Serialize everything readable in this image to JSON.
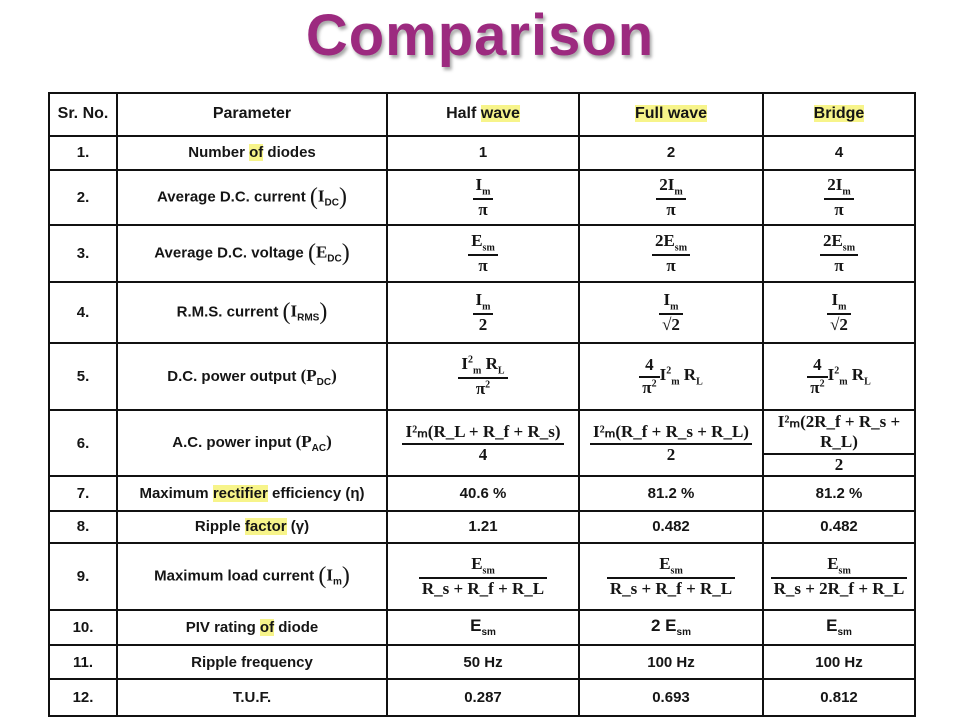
{
  "title": "Comparison",
  "headers": {
    "sr": "Sr. No.",
    "param": "Parameter",
    "half_a": "Half ",
    "half_b": "wave",
    "full": "Full wave",
    "bridge": "Bridge"
  },
  "rows": {
    "r1": {
      "sr": "1.",
      "p_a": "Number ",
      "p_b": "of",
      "p_c": " diodes",
      "half": "1",
      "full": "2",
      "bridge": "4"
    },
    "r2": {
      "sr": "2.",
      "param": "Average D.C. current",
      "sym": "I",
      "sub": "DC",
      "half_num": "I",
      "half_num_sub": "m",
      "half_den": "π",
      "full_num": "2I",
      "full_num_sub": "m",
      "full_den": "π",
      "bridge_num": "2I",
      "bridge_num_sub": "m",
      "bridge_den": "π"
    },
    "r3": {
      "sr": "3.",
      "param": "Average D.C. voltage",
      "sym": "E",
      "sub": "DC",
      "half_num": "E",
      "half_num_sub": "sm",
      "half_den": "π",
      "full_num": "2E",
      "full_num_sub": "sm",
      "full_den": "π",
      "bridge_num": "2E",
      "bridge_num_sub": "sm",
      "bridge_den": "π"
    },
    "r4": {
      "sr": "4.",
      "param": "R.M.S. current",
      "sym": "I",
      "sub": "RMS",
      "half_num": "I",
      "half_num_sub": "m",
      "half_den": "2",
      "full_num": "I",
      "full_num_sub": "m",
      "full_den": "√2",
      "bridge_num": "I",
      "bridge_num_sub": "m",
      "bridge_den": "√2"
    },
    "r5": {
      "sr": "5.",
      "param": "D.C. power output",
      "sym": "P",
      "sub": "DC",
      "half_num": "I",
      "half_num_sup": "2",
      "half_num_sub": "m",
      "half_num_r": " R",
      "half_num_r_sub": "L",
      "half_den": "π",
      "half_den_sup": "2",
      "full_coef_num": "4",
      "full_coef_den": "π",
      "full_coef_den_sup": "2",
      "full_rest": "I",
      "full_rest_sup": "2",
      "full_rest_sub": "m",
      "full_rest_r": " R",
      "full_rest_r_sub": "L",
      "bridge_coef_num": "4",
      "bridge_coef_den": "π",
      "bridge_coef_den_sup": "2",
      "bridge_rest": "I",
      "bridge_rest_sup": "2",
      "bridge_rest_sub": "m",
      "bridge_rest_r": " R",
      "bridge_rest_r_sub": "L"
    },
    "r6": {
      "sr": "6.",
      "param": "A.C. power input",
      "sym": "P",
      "sub": "AC",
      "half_num": "I²ₘ(R_L + R_f + R_s)",
      "half_den": "4",
      "full_num": "I²ₘ(R_f + R_s + R_L)",
      "full_den": "2",
      "bridge_num": "I²ₘ(2R_f + R_s + R_L)",
      "bridge_den": "2"
    },
    "r7": {
      "sr": "7.",
      "p_a": "Maximum ",
      "p_b": "rectifier",
      "p_c": " efficiency (η)",
      "half": "40.6 %",
      "full": "81.2 %",
      "bridge": "81.2 %"
    },
    "r8": {
      "sr": "8.",
      "p_a": "Ripple ",
      "p_b": "factor",
      "p_c": " (γ)",
      "half": "1.21",
      "full": "0.482",
      "bridge": "0.482"
    },
    "r9": {
      "sr": "9.",
      "param": "Maximum load current",
      "sym": "I",
      "sub": "m",
      "half_num": "E",
      "half_num_sub": "sm",
      "half_den": "R_s + R_f + R_L",
      "full_num": "E",
      "full_num_sub": "sm",
      "full_den": "R_s + R_f + R_L",
      "bridge_num": "E",
      "bridge_num_sub": "sm",
      "bridge_den": "R_s + 2R_f + R_L"
    },
    "r10": {
      "sr": "10.",
      "p_a": "PIV rating ",
      "p_b": "of",
      "p_c": " diode",
      "half": "E",
      "half_sub": "sm",
      "full": "2 E",
      "full_sub": "sm",
      "bridge": "E",
      "bridge_sub": "sm"
    },
    "r11": {
      "sr": "11.",
      "param": "Ripple frequency",
      "half": "50 Hz",
      "full": "100 Hz",
      "bridge": "100 Hz"
    },
    "r12": {
      "sr": "12.",
      "param": "T.U.F.",
      "half": "0.287",
      "full": "0.693",
      "bridge": "0.812"
    }
  },
  "colors": {
    "title": "#9c2a7f",
    "highlight": "#f7f48a",
    "border": "#111111"
  }
}
